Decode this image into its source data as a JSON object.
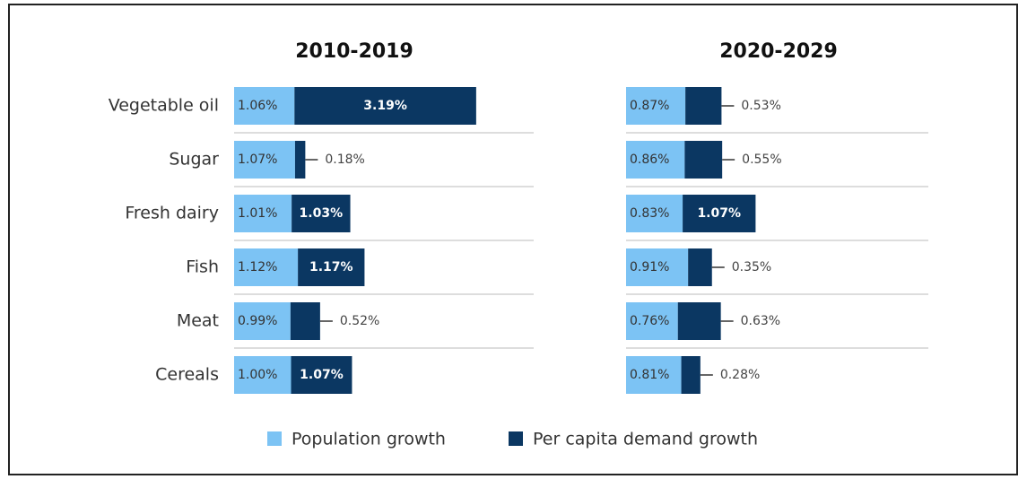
{
  "chart_data": {
    "type": "bar",
    "stacked": true,
    "categories": [
      "Vegetable oil",
      "Sugar",
      "Fresh dairy",
      "Fish",
      "Meat",
      "Cereals"
    ],
    "series": [
      {
        "name": "Population growth",
        "color": "#7cc3f4"
      },
      {
        "name": "Per capita demand growth",
        "color": "#0b3762"
      }
    ],
    "panels": [
      {
        "title": "2010-2019",
        "series": [
          {
            "values": [
              1.06,
              1.07,
              1.01,
              1.12,
              0.99,
              1.0
            ],
            "value_labels": [
              "1.06%",
              "1.07%",
              "1.01%",
              "1.12%",
              "0.99%",
              "1.00%"
            ]
          },
          {
            "values": [
              3.19,
              0.18,
              1.03,
              1.17,
              0.52,
              1.07
            ],
            "value_labels": [
              "3.19%",
              "0.18%",
              "1.03%",
              "1.17%",
              "0.52%",
              "1.07%"
            ]
          }
        ]
      },
      {
        "title": "2020-2029",
        "series": [
          {
            "values": [
              0.87,
              0.86,
              0.83,
              0.91,
              0.76,
              0.81
            ],
            "value_labels": [
              "0.87%",
              "0.86%",
              "0.83%",
              "0.91%",
              "0.76%",
              "0.81%"
            ]
          },
          {
            "values": [
              0.53,
              0.55,
              1.07,
              0.35,
              0.63,
              0.28
            ],
            "value_labels": [
              "0.53%",
              "0.55%",
              "1.07%",
              "0.35%",
              "0.63%",
              "0.28%"
            ]
          }
        ]
      }
    ]
  }
}
